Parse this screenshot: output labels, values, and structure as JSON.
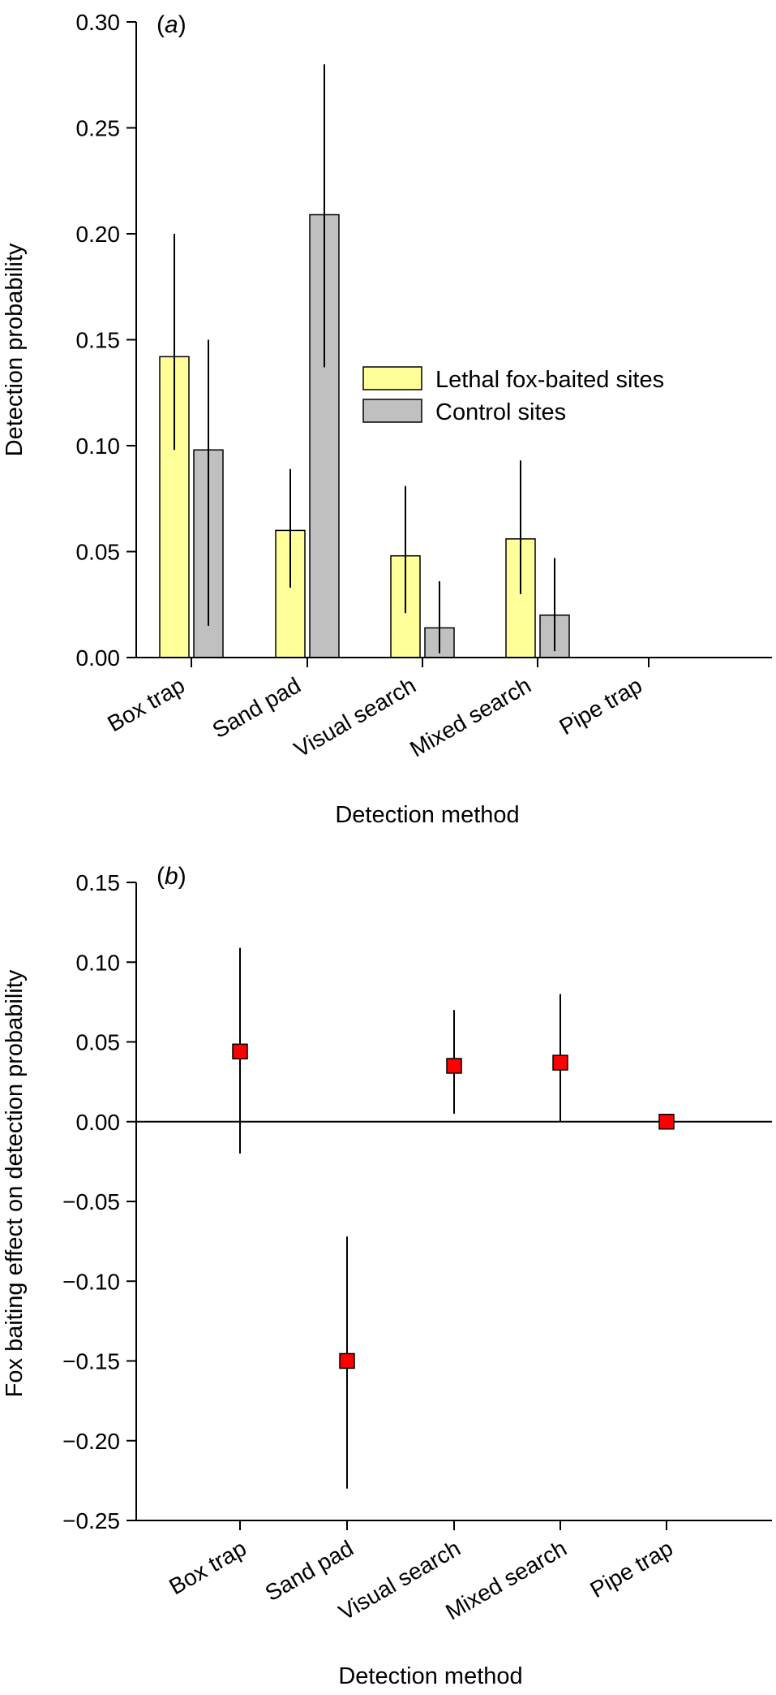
{
  "chart_data": [
    {
      "type": "bar",
      "panel_label": "(a)",
      "panel_letter": "a",
      "xlabel": "Detection method",
      "ylabel": "Detection probability",
      "categories": [
        "Box trap",
        "Sand pad",
        "Visual search",
        "Mixed search",
        "Pipe trap"
      ],
      "ylim": [
        0,
        0.3
      ],
      "yticks": [
        0.0,
        0.05,
        0.1,
        0.15,
        0.2,
        0.25,
        0.3
      ],
      "ytick_labels": [
        "0.00",
        "0.05",
        "0.10",
        "0.15",
        "0.20",
        "0.25",
        "0.30"
      ],
      "grid": false,
      "legend_position": "right",
      "series": [
        {
          "name": "Lethal fox-baited sites",
          "color": "#ffff99",
          "values": [
            0.142,
            0.06,
            0.048,
            0.056,
            null
          ],
          "err_low": [
            0.098,
            0.033,
            0.021,
            0.03,
            null
          ],
          "err_high": [
            0.2,
            0.089,
            0.081,
            0.093,
            null
          ]
        },
        {
          "name": "Control sites",
          "color": "#c0c0c0",
          "values": [
            0.098,
            0.209,
            0.014,
            0.02,
            null
          ],
          "err_low": [
            0.015,
            0.137,
            0.002,
            0.003,
            null
          ],
          "err_high": [
            0.15,
            0.28,
            0.036,
            0.047,
            null
          ]
        }
      ]
    },
    {
      "type": "scatter",
      "panel_label": "(b)",
      "panel_letter": "b",
      "xlabel": "Detection method",
      "ylabel": "Fox baiting effect on detection probability",
      "categories": [
        "Box trap",
        "Sand pad",
        "Visual search",
        "Mixed search",
        "Pipe trap"
      ],
      "ylim": [
        -0.25,
        0.15
      ],
      "yticks": [
        -0.25,
        -0.2,
        -0.15,
        -0.1,
        -0.05,
        0.0,
        0.05,
        0.1,
        0.15
      ],
      "ytick_labels": [
        "−0.25",
        "−0.20",
        "−0.15",
        "−0.10",
        "−0.05",
        "0.00",
        "0.05",
        "0.10",
        "0.15"
      ],
      "grid": false,
      "zero_line": true,
      "marker_color": "#ff0000",
      "values": [
        0.044,
        -0.15,
        0.035,
        0.037,
        0.0
      ],
      "err_low": [
        -0.02,
        -0.23,
        0.005,
        0.0,
        null
      ],
      "err_high": [
        0.109,
        -0.072,
        0.07,
        0.08,
        null
      ]
    }
  ]
}
